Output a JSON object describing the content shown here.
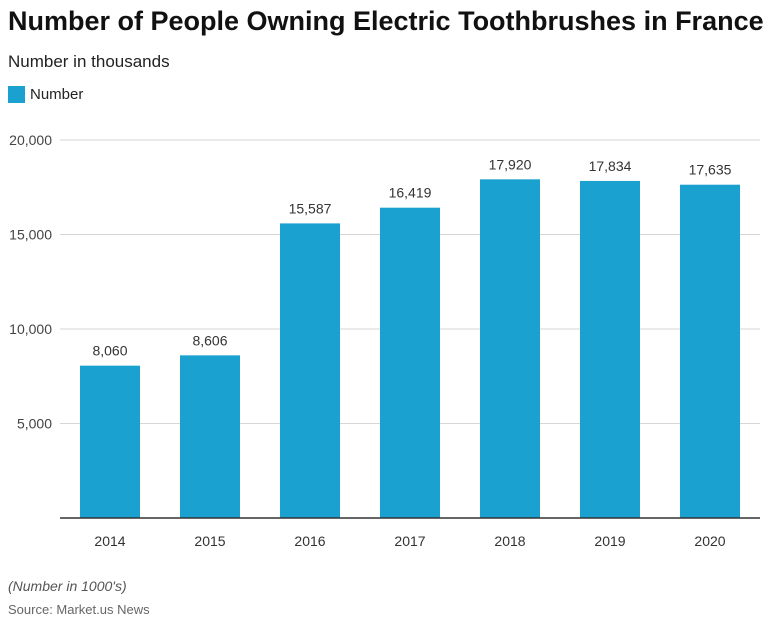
{
  "chart_data": {
    "type": "bar",
    "title": "Number of People Owning Electric Toothbrushes in France",
    "subtitle": "Number in thousands",
    "categories": [
      "2014",
      "2015",
      "2016",
      "2017",
      "2018",
      "2019",
      "2020"
    ],
    "series": [
      {
        "name": "Number",
        "values": [
          8060,
          8606,
          15587,
          16419,
          17920,
          17834,
          17635
        ],
        "color": "#1ba1cf"
      }
    ],
    "data_labels": [
      "8,060",
      "8,606",
      "15,587",
      "16,419",
      "17,920",
      "17,834",
      "17,635"
    ],
    "ylim": [
      0,
      20000
    ],
    "yticks": [
      5000,
      10000,
      15000,
      20000
    ],
    "ytick_labels": [
      "5,000",
      "10,000",
      "15,000",
      "20,000"
    ],
    "grid": true,
    "legend_position": "top-left"
  },
  "footer": {
    "note": "(Number in 1000's)",
    "source": "Source: Market.us News"
  },
  "colors": {
    "bar": "#1ba1cf",
    "grid": "#d6d6d6",
    "axis": "#333333"
  }
}
